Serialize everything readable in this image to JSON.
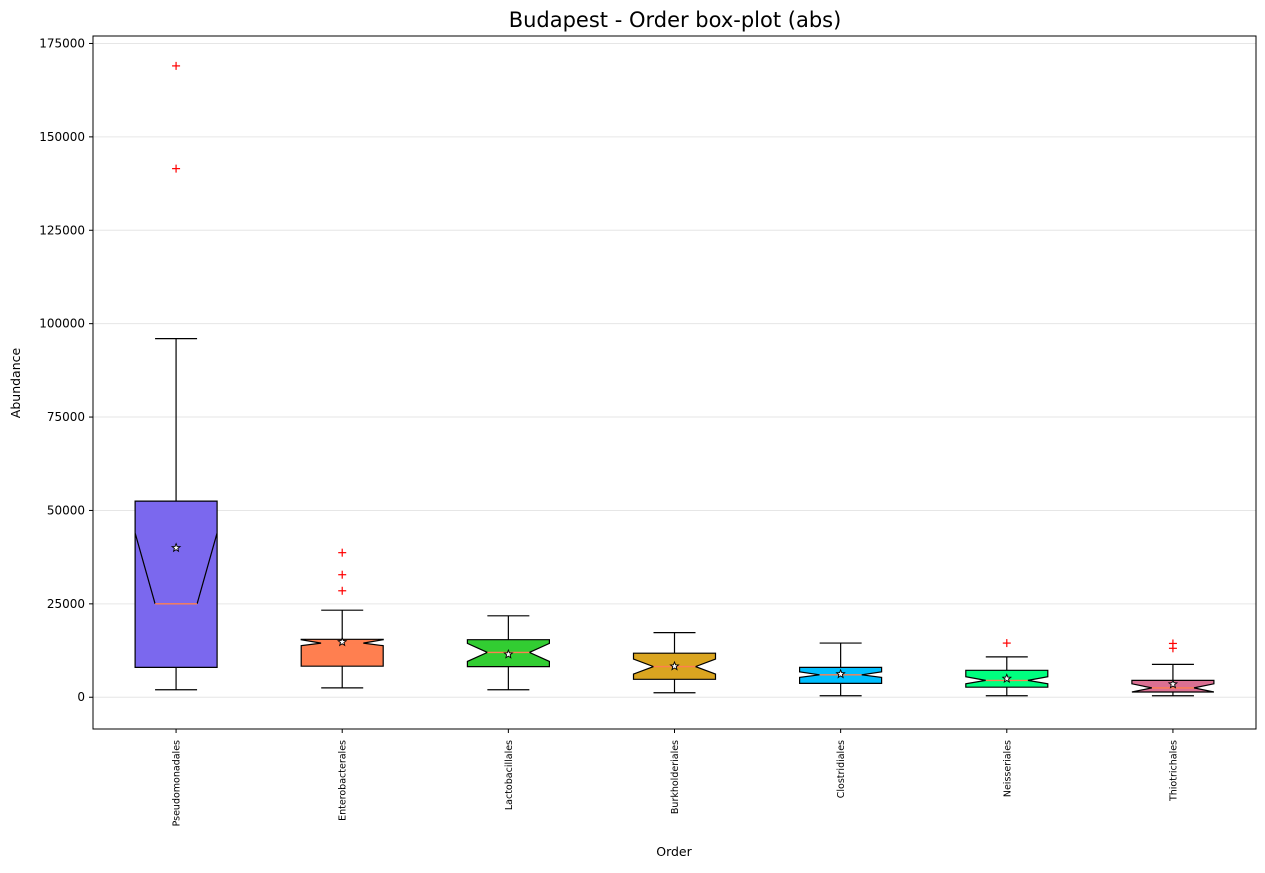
{
  "chart_data": {
    "type": "box",
    "title": "Budapest - Order box-plot (abs)",
    "xlabel": "Order",
    "ylabel": "Abundance",
    "ylim": [
      -8500,
      177000
    ],
    "yticks": [
      0,
      25000,
      50000,
      75000,
      100000,
      125000,
      150000,
      175000
    ],
    "ytick_labels": [
      "0",
      "25000",
      "50000",
      "75000",
      "100000",
      "125000",
      "150000",
      "175000"
    ],
    "grid": "horizontal",
    "notched": true,
    "median_color": "#ff7f50",
    "mean_marker": "star",
    "outlier_marker": "+",
    "outlier_color": "#ff0000",
    "categories": [
      "Pseudomonadales",
      "Enterobacterales",
      "Lactobacillales",
      "Burkholderiales",
      "Clostridiales",
      "Neisseriales",
      "Thiotrichales"
    ],
    "series": [
      {
        "whisker_low": 2000,
        "q1": 8000,
        "notch_low": 44000,
        "median": 25000,
        "notch_high": 44000,
        "q3": 52500,
        "whisker_high": 96000,
        "mean": 40000,
        "outliers": [
          141500,
          169000
        ],
        "color": "#7b68ee"
      },
      {
        "whisker_low": 2500,
        "q1": 8300,
        "notch_low": 13800,
        "median": 14500,
        "notch_high": 15400,
        "q3": 15500,
        "whisker_high": 23300,
        "mean": 14800,
        "outliers": [
          28500,
          32800,
          38700
        ],
        "color": "#ff7f50"
      },
      {
        "whisker_low": 2000,
        "q1": 8200,
        "notch_low": 9600,
        "median": 12000,
        "notch_high": 14400,
        "q3": 15400,
        "whisker_high": 21800,
        "mean": 11500,
        "outliers": [],
        "color": "#32cd32"
      },
      {
        "whisker_low": 1200,
        "q1": 4800,
        "notch_low": 6200,
        "median": 8200,
        "notch_high": 10200,
        "q3": 11800,
        "whisker_high": 17300,
        "mean": 8300,
        "outliers": [],
        "color": "#daa520"
      },
      {
        "whisker_low": 400,
        "q1": 3700,
        "notch_low": 5300,
        "median": 6000,
        "notch_high": 6800,
        "q3": 8000,
        "whisker_high": 14500,
        "mean": 6200,
        "outliers": [],
        "color": "#00bfff"
      },
      {
        "whisker_low": 400,
        "q1": 2700,
        "notch_low": 3600,
        "median": 4500,
        "notch_high": 5500,
        "q3": 7200,
        "whisker_high": 10800,
        "mean": 5000,
        "outliers": [
          14500
        ],
        "color": "#00ff7f"
      },
      {
        "whisker_low": 400,
        "q1": 1400,
        "notch_low": 1400,
        "median": 2500,
        "notch_high": 3600,
        "q3": 4500,
        "whisker_high": 8800,
        "mean": 3500,
        "outliers": [
          13100,
          14400
        ],
        "color": "#db7093"
      }
    ]
  }
}
